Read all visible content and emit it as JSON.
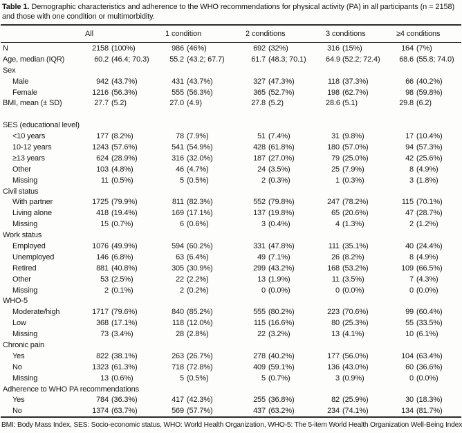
{
  "table": {
    "title_label": "Table 1.",
    "title_text": "Demographic characteristics and adherence to the WHO recommendations for physical activity (PA) in all participants (n = 2158) and those with one condition or multimorbidity.",
    "columns": [
      "All",
      "1 condition",
      "2 conditions",
      "3 conditions",
      "≥4 conditions"
    ],
    "rows": [
      {
        "label": "N",
        "indent": 0,
        "values": [
          [
            "2158",
            "(100%)"
          ],
          [
            "986",
            "(46%)"
          ],
          [
            "692",
            "(32%)"
          ],
          [
            "316",
            "(15%)"
          ],
          [
            "164",
            "(7%)"
          ]
        ]
      },
      {
        "label": "Age, median (IQR)",
        "indent": 0,
        "values": [
          [
            "60.2",
            "(46.4; 70.3)"
          ],
          [
            "55.2",
            "(43.2; 67.7)"
          ],
          [
            "61.7",
            "(48.3; 70.1)"
          ],
          [
            "64.9",
            "(52.2; 72.4)"
          ],
          [
            "68.6",
            "(55.8; 74.0)"
          ]
        ]
      },
      {
        "label": "Sex",
        "indent": 0,
        "values": null
      },
      {
        "label": "Male",
        "indent": 1,
        "values": [
          [
            "942",
            "(43.7%)"
          ],
          [
            "431",
            "(43.7%)"
          ],
          [
            "327",
            "(47.3%)"
          ],
          [
            "118",
            "(37.3%)"
          ],
          [
            "66",
            "(40.2%)"
          ]
        ]
      },
      {
        "label": "Female",
        "indent": 1,
        "values": [
          [
            "1216",
            "(56.3%)"
          ],
          [
            "555",
            "(56.3%)"
          ],
          [
            "365",
            "(52.7%)"
          ],
          [
            "198",
            "(62.7%)"
          ],
          [
            "98",
            "(59.8%)"
          ]
        ]
      },
      {
        "label": "BMI, mean (± SD)",
        "indent": 0,
        "values": [
          [
            "27.7",
            "(5.2)"
          ],
          [
            "27.0",
            "(4.9)"
          ],
          [
            "27.8",
            "(5.2)"
          ],
          [
            "28.6",
            "(5.1)"
          ],
          [
            "29.8",
            "(6.2)"
          ]
        ]
      },
      {
        "label": "",
        "indent": 0,
        "values": null,
        "spacer": true
      },
      {
        "label": "SES (educational level)",
        "indent": 0,
        "values": null
      },
      {
        "label": "<10 years",
        "indent": 1,
        "values": [
          [
            "177",
            "(8.2%)"
          ],
          [
            "78",
            "(7.9%)"
          ],
          [
            "51",
            "(7.4%)"
          ],
          [
            "31",
            "(9.8%)"
          ],
          [
            "17",
            "(10.4%)"
          ]
        ]
      },
      {
        "label": "10-12 years",
        "indent": 1,
        "values": [
          [
            "1243",
            "(57.6%)"
          ],
          [
            "541",
            "(54.9%)"
          ],
          [
            "428",
            "(61.8%)"
          ],
          [
            "180",
            "(57.0%)"
          ],
          [
            "94",
            "(57.3%)"
          ]
        ]
      },
      {
        "label": "≥13 years",
        "indent": 1,
        "values": [
          [
            "624",
            "(28.9%)"
          ],
          [
            "316",
            "(32.0%)"
          ],
          [
            "187",
            "(27.0%)"
          ],
          [
            "79",
            "(25.0%)"
          ],
          [
            "42",
            "(25.6%)"
          ]
        ]
      },
      {
        "label": "Other",
        "indent": 1,
        "values": [
          [
            "103",
            "(4.8%)"
          ],
          [
            "46",
            "(4.7%)"
          ],
          [
            "24",
            "(3.5%)"
          ],
          [
            "25",
            "(7.9%)"
          ],
          [
            "8",
            "(4.9%)"
          ]
        ]
      },
      {
        "label": "Missing",
        "indent": 1,
        "values": [
          [
            "11",
            "(0.5%)"
          ],
          [
            "5",
            "(0.5%)"
          ],
          [
            "2",
            "(0.3%)"
          ],
          [
            "1",
            "(0.3%)"
          ],
          [
            "3",
            "(1.8%)"
          ]
        ]
      },
      {
        "label": "Civil status",
        "indent": 0,
        "values": null
      },
      {
        "label": "With partner",
        "indent": 1,
        "values": [
          [
            "1725",
            "(79.9%)"
          ],
          [
            "811",
            "(82.3%)"
          ],
          [
            "552",
            "(79.8%)"
          ],
          [
            "247",
            "(78.2%)"
          ],
          [
            "115",
            "(70.1%)"
          ]
        ]
      },
      {
        "label": "Living alone",
        "indent": 1,
        "values": [
          [
            "418",
            "(19.4%)"
          ],
          [
            "169",
            "(17.1%)"
          ],
          [
            "137",
            "(19.8%)"
          ],
          [
            "65",
            "(20.6%)"
          ],
          [
            "47",
            "(28.7%)"
          ]
        ]
      },
      {
        "label": "Missing",
        "indent": 1,
        "values": [
          [
            "15",
            "(0.7%)"
          ],
          [
            "6",
            "(0.6%)"
          ],
          [
            "3",
            "(0.4%)"
          ],
          [
            "4",
            "(1.3%)"
          ],
          [
            "2",
            "(1.2%)"
          ]
        ]
      },
      {
        "label": "Work status",
        "indent": 0,
        "values": null
      },
      {
        "label": "Employed",
        "indent": 1,
        "values": [
          [
            "1076",
            "(49.9%)"
          ],
          [
            "594",
            "(60.2%)"
          ],
          [
            "331",
            "(47.8%)"
          ],
          [
            "111",
            "(35.1%)"
          ],
          [
            "40",
            "(24.4%)"
          ]
        ]
      },
      {
        "label": "Unemployed",
        "indent": 1,
        "values": [
          [
            "146",
            "(6.8%)"
          ],
          [
            "63",
            "(6.4%)"
          ],
          [
            "49",
            "(7.1%)"
          ],
          [
            "26",
            "(8.2%)"
          ],
          [
            "8",
            "(4.9%)"
          ]
        ]
      },
      {
        "label": "Retired",
        "indent": 1,
        "values": [
          [
            "881",
            "(40.8%)"
          ],
          [
            "305",
            "(30.9%)"
          ],
          [
            "299",
            "(43.2%)"
          ],
          [
            "168",
            "(53.2%)"
          ],
          [
            "109",
            "(66.5%)"
          ]
        ]
      },
      {
        "label": "Other",
        "indent": 1,
        "values": [
          [
            "53",
            "(2.5%)"
          ],
          [
            "22",
            "(2.2%)"
          ],
          [
            "13",
            "(1.9%)"
          ],
          [
            "11",
            "(3.5%)"
          ],
          [
            "7",
            "(4.3%)"
          ]
        ]
      },
      {
        "label": "Missing",
        "indent": 1,
        "values": [
          [
            "2",
            "(0.1%)"
          ],
          [
            "2",
            "(0.2%)"
          ],
          [
            "0",
            "(0.0%)"
          ],
          [
            "0",
            "(0.0%)"
          ],
          [
            "0",
            "(0.0%)"
          ]
        ]
      },
      {
        "label": "WHO-5",
        "indent": 0,
        "values": null
      },
      {
        "label": "Moderate/high",
        "indent": 1,
        "values": [
          [
            "1717",
            "(79.6%)"
          ],
          [
            "840",
            "(85.2%)"
          ],
          [
            "555",
            "(80.2%)"
          ],
          [
            "223",
            "(70.6%)"
          ],
          [
            "99",
            "(60.4%)"
          ]
        ]
      },
      {
        "label": "Low",
        "indent": 1,
        "values": [
          [
            "368",
            "(17.1%)"
          ],
          [
            "118",
            "(12.0%)"
          ],
          [
            "115",
            "(16.6%)"
          ],
          [
            "80",
            "(25.3%)"
          ],
          [
            "55",
            "(33.5%)"
          ]
        ]
      },
      {
        "label": "Missing",
        "indent": 1,
        "values": [
          [
            "73",
            "(3.4%)"
          ],
          [
            "28",
            "(2.8%)"
          ],
          [
            "22",
            "(3.2%)"
          ],
          [
            "13",
            "(4.1%)"
          ],
          [
            "10",
            "(6.1%)"
          ]
        ]
      },
      {
        "label": "Chronic pain",
        "indent": 0,
        "values": null
      },
      {
        "label": "Yes",
        "indent": 1,
        "values": [
          [
            "822",
            "(38.1%)"
          ],
          [
            "263",
            "(26.7%)"
          ],
          [
            "278",
            "(40.2%)"
          ],
          [
            "177",
            "(56.0%)"
          ],
          [
            "104",
            "(63.4%)"
          ]
        ]
      },
      {
        "label": "No",
        "indent": 1,
        "values": [
          [
            "1323",
            "(61.3%)"
          ],
          [
            "718",
            "(72.8%)"
          ],
          [
            "409",
            "(59.1%)"
          ],
          [
            "136",
            "(43.0%)"
          ],
          [
            "60",
            "(36.6%)"
          ]
        ]
      },
      {
        "label": "Missing",
        "indent": 1,
        "values": [
          [
            "13",
            "(0.6%)"
          ],
          [
            "5",
            "(0.5%)"
          ],
          [
            "5",
            "(0.7%)"
          ],
          [
            "3",
            "(0.9%)"
          ],
          [
            "0",
            "(0.0%)"
          ]
        ]
      },
      {
        "label": "Adherence to WHO PA recommendations",
        "indent": 0,
        "values": null
      },
      {
        "label": "Yes",
        "indent": 1,
        "values": [
          [
            "784",
            "(36.3%)"
          ],
          [
            "417",
            "(42.3%)"
          ],
          [
            "255",
            "(36.8%)"
          ],
          [
            "82",
            "(25.9%)"
          ],
          [
            "30",
            "(18.3%)"
          ]
        ]
      },
      {
        "label": "No",
        "indent": 1,
        "values": [
          [
            "1374",
            "(63.7%)"
          ],
          [
            "569",
            "(57.7%)"
          ],
          [
            "437",
            "(63.2%)"
          ],
          [
            "234",
            "(74.1%)"
          ],
          [
            "134",
            "(81.7%)"
          ]
        ]
      }
    ],
    "footnote": "BMI: Body Mass Index, SES: Socio-economic status, WHO: World Health Organization, WHO-5: The 5-item World Health Organization Well-Being Index."
  }
}
